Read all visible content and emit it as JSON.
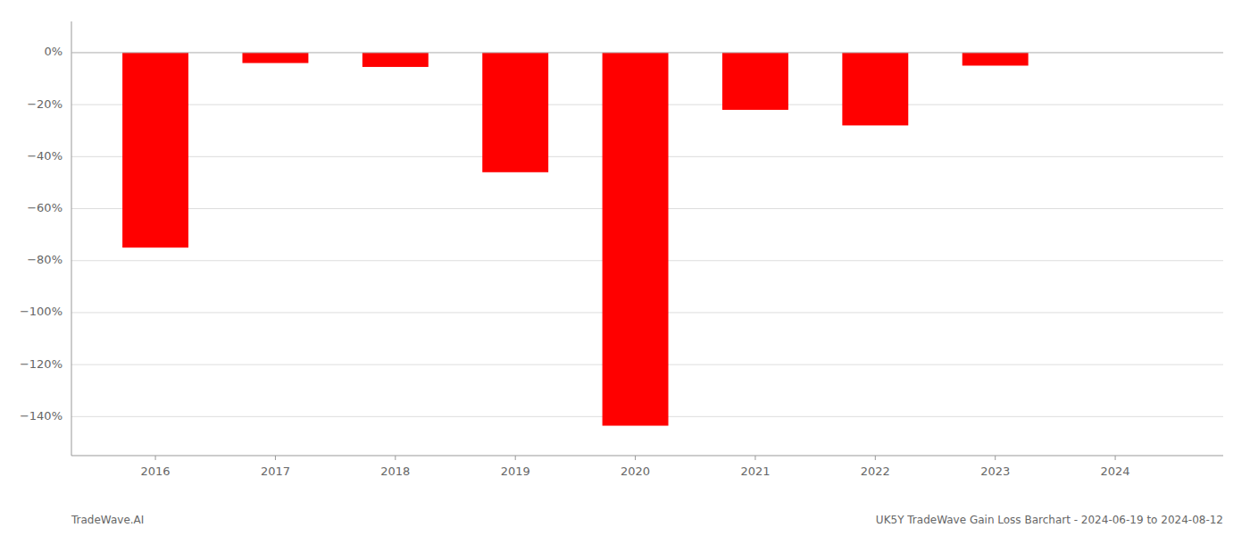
{
  "chart_data": {
    "type": "bar",
    "title": "UK5Y TradeWave Gain Loss Barchart - 2024-06-19 to 2024-08-12",
    "annotations": [
      "TradeWave.AI"
    ],
    "x": [
      2016,
      2017,
      2018,
      2019,
      2020,
      2021,
      2022,
      2023,
      2024
    ],
    "values": [
      -75.0,
      -4.0,
      -5.5,
      -46.0,
      -143.5,
      -22.0,
      -28.0,
      -5.0,
      0.0
    ],
    "color": "#ff0000",
    "xlim": [
      2015.3,
      2024.9
    ],
    "xticks": [
      2016,
      2017,
      2018,
      2019,
      2020,
      2021,
      2022,
      2023,
      2024
    ],
    "ylim": [
      -155,
      12
    ],
    "yticks": [
      {
        "value": 0,
        "label": "0%"
      },
      {
        "value": -20,
        "label": "−20%"
      },
      {
        "value": -40,
        "label": "−40%"
      },
      {
        "value": -60,
        "label": "−60%"
      },
      {
        "value": -80,
        "label": "−80%"
      },
      {
        "value": -100,
        "label": "−100%"
      },
      {
        "value": -120,
        "label": "−120%"
      },
      {
        "value": -140,
        "label": "−140%"
      }
    ],
    "grid": true
  }
}
